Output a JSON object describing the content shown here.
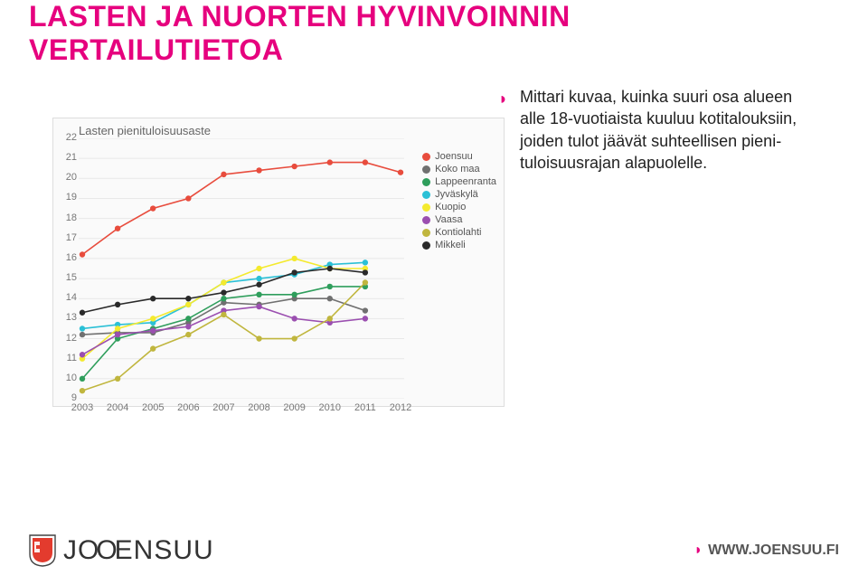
{
  "heading": {
    "line1": "LASTEN JA NUORTEN HYVINVOINNIN",
    "line2": "VERTAILUTIETOA",
    "color": "#e6007e"
  },
  "bullet": {
    "marker_color": "#e6007e",
    "text": "Mittari kuvaa, kuinka suuri osa alueen alle 18-vuotiaista kuuluu kotitalouksiin, joiden tulot jäävät suhteellisen pieni­tuloisuusrajan ala­puolelle."
  },
  "chart": {
    "title": "Lasten pienituloisuusaste",
    "background_color": "#fafafa",
    "grid_color": "#e8e8e8",
    "axis_text_color": "#777777",
    "ylim": [
      9,
      22
    ],
    "ytick_step": 1,
    "years": [
      2003,
      2004,
      2005,
      2006,
      2007,
      2008,
      2009,
      2010,
      2011,
      2012
    ],
    "point_radius": 3.2,
    "line_width": 1.6,
    "series": [
      {
        "name": "Joensuu",
        "color": "#e84c3d",
        "values": [
          16.2,
          17.5,
          18.5,
          19.0,
          20.2,
          20.4,
          20.6,
          20.8,
          20.8,
          20.3
        ]
      },
      {
        "name": "Koko maa",
        "color": "#707070",
        "values": [
          12.2,
          12.3,
          12.3,
          12.8,
          13.8,
          13.7,
          14.0,
          14.0,
          13.4,
          null
        ]
      },
      {
        "name": "Lappeenranta",
        "color": "#2f9e5c",
        "values": [
          10.0,
          12.0,
          12.5,
          13.0,
          14.0,
          14.2,
          14.2,
          14.6,
          14.6,
          null
        ]
      },
      {
        "name": "Jyväskylä",
        "color": "#2bc0d6",
        "values": [
          12.5,
          12.7,
          12.8,
          13.7,
          14.8,
          15.0,
          15.2,
          15.7,
          15.8,
          null
        ]
      },
      {
        "name": "Kuopio",
        "color": "#f4ea2e",
        "values": [
          11.0,
          12.5,
          13.0,
          13.7,
          14.8,
          15.5,
          16.0,
          15.5,
          15.5,
          null
        ]
      },
      {
        "name": "Vaasa",
        "color": "#9b4fb0",
        "values": [
          11.2,
          12.2,
          12.4,
          12.6,
          13.4,
          13.6,
          13.0,
          12.8,
          13.0,
          null
        ]
      },
      {
        "name": "Kontiolahti",
        "color": "#c0b63e",
        "values": [
          9.4,
          10.0,
          11.5,
          12.2,
          13.2,
          12.0,
          12.0,
          13.0,
          14.8,
          null
        ]
      },
      {
        "name": "Mikkeli",
        "color": "#2a2a2a",
        "values": [
          13.3,
          13.7,
          14.0,
          14.0,
          14.3,
          14.7,
          15.3,
          15.5,
          15.3,
          null
        ]
      }
    ]
  },
  "footer": {
    "logo_text": "JOENSUU",
    "logo_o_rep": "OO",
    "shield_fill": "#e33b2e",
    "site_label": "WWW.JOENSUU.FI",
    "site_marker_color": "#e6007e"
  }
}
